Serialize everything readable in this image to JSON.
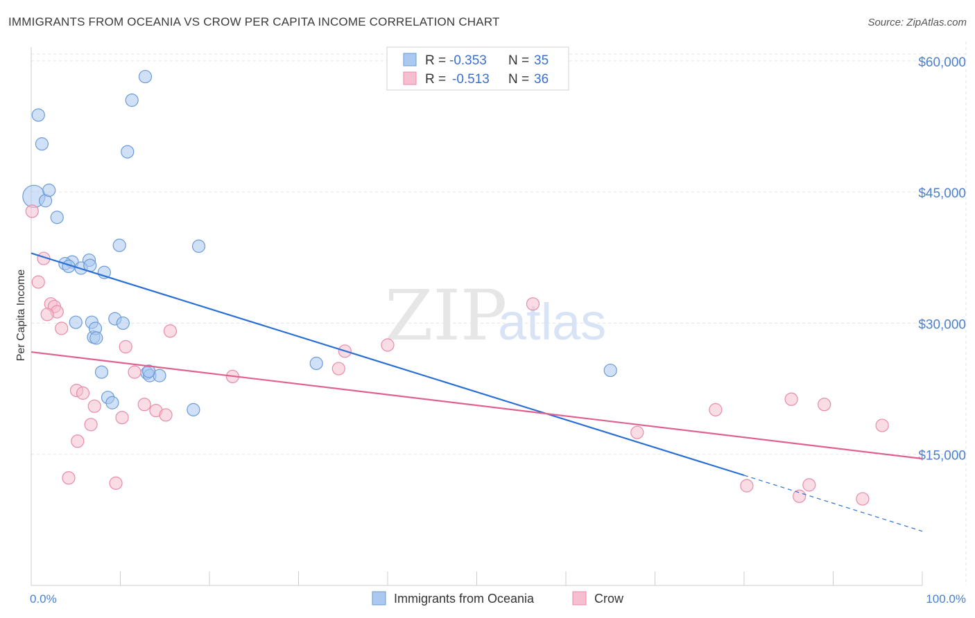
{
  "header": {
    "title": "IMMIGRANTS FROM OCEANIA VS CROW PER CAPITA INCOME CORRELATION CHART",
    "source": "Source: ZipAtlas.com"
  },
  "watermark": {
    "zip": "ZIP",
    "atlas": "atlas"
  },
  "legend": {
    "series1": {
      "r_label": "R =",
      "r_value": "-0.353",
      "n_label": "N =",
      "n_value": "35"
    },
    "series2": {
      "r_label": "R =",
      "r_value": "-0.513",
      "n_label": "N =",
      "n_value": "36"
    }
  },
  "colors": {
    "blue_fill": "#aac8f0",
    "blue_stroke": "#6a9ad8",
    "blue_line": "#2a6fd4",
    "pink_fill": "#f6bfd0",
    "pink_stroke": "#e98aa8",
    "pink_line": "#e06090",
    "grid": "#e3e3e3",
    "axis_text": "#4a7fd0"
  },
  "chart_data": {
    "type": "scatter",
    "title": "IMMIGRANTS FROM OCEANIA VS CROW PER CAPITA INCOME CORRELATION CHART",
    "xlabel": "",
    "ylabel": "Per Capita Income",
    "xlim": [
      0,
      100
    ],
    "ylim": [
      0,
      63000
    ],
    "x_tick_labels": [
      "0.0%",
      "100.0%"
    ],
    "y_ticks": [
      15000,
      30000,
      45000,
      60000
    ],
    "y_tick_labels": [
      "$15,000",
      "$30,000",
      "$45,000",
      "$60,000"
    ],
    "grid": true,
    "legend_position": "top-center",
    "series": [
      {
        "name": "Immigrants from Oceania",
        "color": "#aac8f0",
        "points": [
          [
            0.3,
            44500
          ],
          [
            0.8,
            53800
          ],
          [
            1.2,
            50500
          ],
          [
            1.6,
            44000
          ],
          [
            2.0,
            45200
          ],
          [
            2.9,
            42100
          ],
          [
            4.6,
            37000
          ],
          [
            3.8,
            36800
          ],
          [
            4.2,
            36500
          ],
          [
            6.5,
            37200
          ],
          [
            5.6,
            36300
          ],
          [
            6.6,
            36600
          ],
          [
            8.2,
            35800
          ],
          [
            9.9,
            38900
          ],
          [
            12.8,
            58200
          ],
          [
            11.3,
            55500
          ],
          [
            10.8,
            49600
          ],
          [
            18.8,
            38800
          ],
          [
            6.8,
            30100
          ],
          [
            5.0,
            30100
          ],
          [
            7.0,
            28400
          ],
          [
            7.2,
            29400
          ],
          [
            7.3,
            28300
          ],
          [
            9.4,
            30500
          ],
          [
            10.3,
            30000
          ],
          [
            7.9,
            24400
          ],
          [
            13.0,
            24300
          ],
          [
            13.3,
            24000
          ],
          [
            14.4,
            24000
          ],
          [
            8.6,
            21500
          ],
          [
            9.1,
            20900
          ],
          [
            18.2,
            20100
          ],
          [
            32.0,
            25400
          ],
          [
            65.0,
            24600
          ],
          [
            13.2,
            24500
          ]
        ]
      },
      {
        "name": "Crow",
        "color": "#f6bfd0",
        "points": [
          [
            0.1,
            42800
          ],
          [
            1.4,
            37400
          ],
          [
            0.8,
            34700
          ],
          [
            2.2,
            32200
          ],
          [
            2.6,
            31900
          ],
          [
            2.9,
            31300
          ],
          [
            1.8,
            31000
          ],
          [
            3.4,
            29400
          ],
          [
            10.6,
            27300
          ],
          [
            15.6,
            29100
          ],
          [
            35.2,
            26800
          ],
          [
            40.0,
            27500
          ],
          [
            56.3,
            32200
          ],
          [
            34.5,
            24800
          ],
          [
            22.6,
            23900
          ],
          [
            11.6,
            24400
          ],
          [
            5.1,
            22300
          ],
          [
            5.8,
            22000
          ],
          [
            7.1,
            20500
          ],
          [
            12.7,
            20700
          ],
          [
            14.0,
            20000
          ],
          [
            15.1,
            19500
          ],
          [
            10.2,
            19200
          ],
          [
            6.7,
            18400
          ],
          [
            5.2,
            16500
          ],
          [
            4.2,
            12300
          ],
          [
            9.5,
            11700
          ],
          [
            76.8,
            20100
          ],
          [
            85.3,
            21300
          ],
          [
            89.0,
            20700
          ],
          [
            95.5,
            18300
          ],
          [
            68.0,
            17500
          ],
          [
            80.3,
            11400
          ],
          [
            86.2,
            10200
          ],
          [
            87.3,
            11500
          ],
          [
            93.3,
            9900
          ]
        ]
      }
    ],
    "trend_lines": [
      {
        "series": "Immigrants from Oceania",
        "x1": 0,
        "y1": 38000,
        "x2": 80,
        "y2": 12600,
        "dash_to_x": 100,
        "dash_to_y": 6200
      },
      {
        "series": "Crow",
        "x1": 0,
        "y1": 26700,
        "x2": 100,
        "y2": 14500
      }
    ]
  },
  "bottom_legend": {
    "item1": "Immigrants from Oceania",
    "item2": "Crow"
  }
}
